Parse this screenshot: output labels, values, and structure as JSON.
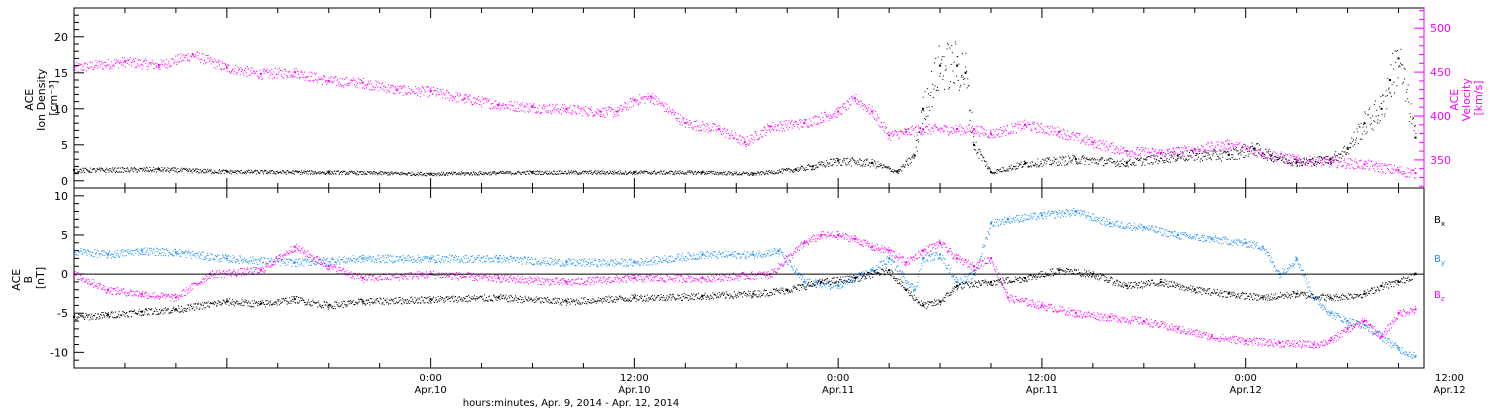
{
  "figure": {
    "xaxis_title": "hours:minutes, Apr.  9, 2014 - Apr. 12, 2014",
    "time_ticks": [
      {
        "hours": 24,
        "time": "0:00",
        "date": "Apr.10"
      },
      {
        "hours": 36,
        "time": "12:00",
        "date": "Apr.10"
      },
      {
        "hours": 48,
        "time": "0:00",
        "date": "Apr.11"
      },
      {
        "hours": 60,
        "time": "12:00",
        "date": "Apr.11"
      },
      {
        "hours": 72,
        "time": "0:00",
        "date": "Apr.12"
      },
      {
        "hours": 84,
        "time": "12:00",
        "date": "Apr.12"
      }
    ]
  },
  "chart_data": [
    {
      "type": "scatter",
      "panel": "top",
      "ylabel_left": [
        "ACE",
        "Ion Density",
        "[cm⁻³]"
      ],
      "ylabel_right": [
        "ACE",
        "Velocity",
        "[km/s]"
      ],
      "x_unit": "hours since 2014-04-09 00:00 UT",
      "xlim": [
        3,
        82.5
      ],
      "ylim_left": [
        -1,
        24
      ],
      "yticks_left": [
        0,
        5,
        10,
        15,
        20
      ],
      "ylim_right": [
        318,
        523
      ],
      "yticks_right": [
        350,
        400,
        450,
        500
      ],
      "grid": false,
      "series": [
        {
          "axis": "left",
          "color": "#000000",
          "x": [
            3,
            8,
            12,
            18,
            24,
            30,
            36,
            40,
            43,
            45.5,
            46.5,
            48,
            50,
            51.5,
            52.5,
            53,
            54,
            55,
            55.5,
            56,
            57,
            59,
            62,
            65,
            68,
            71,
            72.5,
            73.5,
            75,
            77,
            78,
            79,
            80,
            80.5,
            81,
            82
          ],
          "y": [
            1.5,
            1.6,
            1.3,
            1.2,
            1.0,
            1.2,
            1.2,
            1.2,
            1.0,
            1.6,
            2.0,
            2.8,
            2.5,
            1.3,
            3.5,
            10,
            16,
            16,
            15,
            5,
            1.2,
            2.4,
            3.0,
            2.5,
            3.5,
            3.6,
            4.5,
            3.5,
            2.6,
            3.0,
            4.5,
            8,
            10,
            14,
            17,
            6
          ]
        },
        {
          "axis": "right",
          "color": "#ff00ff",
          "x": [
            3,
            6,
            8,
            10,
            12,
            14,
            16,
            18,
            20,
            22,
            24,
            26,
            28,
            30,
            32,
            34,
            35,
            36,
            37,
            39,
            41,
            42.5,
            44,
            46,
            48,
            49,
            50,
            51,
            52,
            53,
            55,
            56,
            57,
            59,
            61,
            63,
            65,
            67,
            69,
            71,
            73,
            75,
            77,
            79,
            81,
            82
          ],
          "y": [
            455,
            462,
            458,
            470,
            455,
            448,
            450,
            440,
            438,
            430,
            428,
            420,
            413,
            410,
            408,
            405,
            405,
            418,
            422,
            392,
            385,
            370,
            388,
            392,
            405,
            420,
            405,
            378,
            382,
            385,
            385,
            385,
            380,
            390,
            382,
            370,
            360,
            358,
            362,
            368,
            358,
            350,
            348,
            345,
            338,
            335
          ]
        }
      ]
    },
    {
      "type": "scatter",
      "panel": "bottom",
      "ylabel_left": [
        "ACE",
        "B",
        "[nT]"
      ],
      "x_unit": "hours since 2014-04-09 00:00 UT",
      "xlim": [
        3,
        82.5
      ],
      "ylim": [
        -12,
        11
      ],
      "yticks": [
        -10,
        -5,
        0,
        5,
        10
      ],
      "zero_line": true,
      "grid": false,
      "series": [
        {
          "name": "B",
          "sub": "x",
          "color": "#000000",
          "x": [
            3,
            5,
            7,
            9,
            12,
            14,
            16,
            18,
            20,
            24,
            28,
            32,
            36,
            40,
            43,
            45,
            47,
            49,
            51,
            52,
            53,
            54,
            55,
            57,
            59,
            61,
            63,
            65,
            67,
            69,
            71,
            73,
            75,
            77,
            79,
            80,
            81,
            82
          ],
          "y": [
            -5.5,
            -5.2,
            -4.8,
            -4.5,
            -3.5,
            -3.8,
            -3.2,
            -4.0,
            -3.5,
            -3.2,
            -3.0,
            -3.5,
            -3.0,
            -2.8,
            -2.5,
            -2.0,
            -1.0,
            -0.5,
            0.5,
            -2.0,
            -4.0,
            -3.5,
            -1.5,
            -1.0,
            -0.5,
            0.5,
            0.0,
            -1.5,
            -1.0,
            -2.0,
            -2.5,
            -3.0,
            -2.5,
            -3.0,
            -2.5,
            -1.5,
            -1.0,
            0.0
          ]
        },
        {
          "name": "B",
          "sub": "y",
          "color": "#1e90ff",
          "x": [
            3,
            5,
            7,
            9,
            12,
            16,
            20,
            24,
            28,
            32,
            36,
            40,
            43,
            44.5,
            46,
            48,
            50,
            51,
            52.5,
            53,
            54,
            55,
            56,
            57,
            58,
            60,
            62,
            64,
            66,
            68,
            70,
            72,
            73,
            74,
            75,
            76,
            77,
            78,
            79,
            80,
            81,
            82
          ],
          "y": [
            3.0,
            2.5,
            3.0,
            2.8,
            2.0,
            1.5,
            2.0,
            2.0,
            2.0,
            1.5,
            1.5,
            2.5,
            2.5,
            3.0,
            -1.0,
            -1.5,
            0.5,
            2.0,
            -2.0,
            2.0,
            2.5,
            -1.0,
            0.0,
            6.5,
            7.0,
            7.5,
            8.0,
            6.5,
            6.0,
            5.0,
            4.5,
            4.0,
            3.5,
            0.0,
            2.0,
            -3.0,
            -5.0,
            -6.0,
            -6.5,
            -8.0,
            -9.5,
            -10.5
          ]
        },
        {
          "name": "B",
          "sub": "z",
          "color": "#ff00ff",
          "x": [
            3,
            5,
            7,
            9,
            11,
            14,
            16,
            18,
            20,
            24,
            28,
            32,
            36,
            40,
            44,
            46,
            47,
            48,
            49,
            50,
            51,
            52,
            53,
            54,
            55,
            56,
            57,
            58,
            60,
            62,
            64,
            66,
            68,
            70,
            72,
            74,
            76,
            77,
            78,
            79,
            80,
            81,
            82
          ],
          "y": [
            0.0,
            -2.0,
            -2.5,
            -3.0,
            0.0,
            0.5,
            3.5,
            1.0,
            -0.5,
            0.0,
            -0.5,
            -1.0,
            -0.5,
            -0.5,
            0.0,
            4.0,
            5.0,
            5.0,
            4.5,
            3.5,
            3.0,
            1.5,
            3.0,
            4.0,
            2.0,
            1.0,
            2.0,
            -3.0,
            -4.0,
            -5.0,
            -5.5,
            -6.0,
            -7.0,
            -8.0,
            -8.5,
            -8.8,
            -9.0,
            -8.5,
            -7.0,
            -6.0,
            -8.0,
            -5.0,
            -4.5
          ]
        }
      ]
    }
  ]
}
